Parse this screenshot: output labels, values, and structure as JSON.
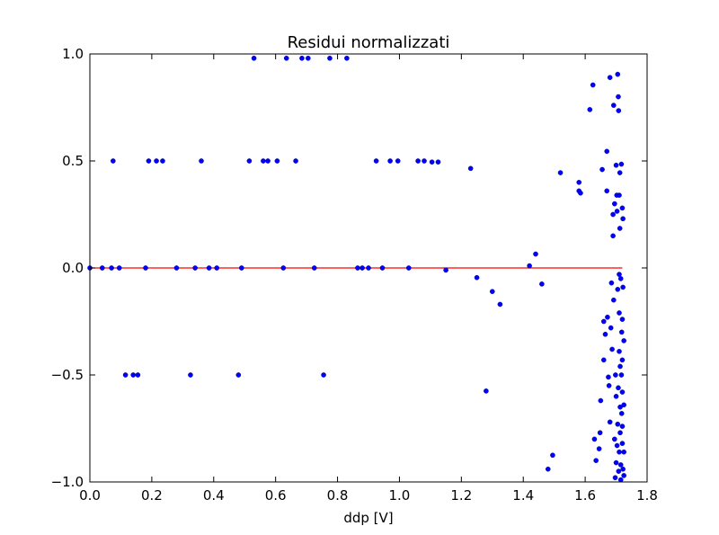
{
  "chart_data": {
    "type": "scatter",
    "title": "Residui normalizzati",
    "xlabel": "ddp [V]",
    "ylabel": "",
    "xlim": [
      0.0,
      1.8
    ],
    "ylim": [
      -1.0,
      1.0
    ],
    "xticks": [
      "0.0",
      "0.2",
      "0.4",
      "0.6",
      "0.8",
      "1.0",
      "1.2",
      "1.4",
      "1.6",
      "1.8"
    ],
    "yticks": [
      "−1.0",
      "−0.5",
      "0.0",
      "0.5",
      "1.0"
    ],
    "grid": false,
    "point_color": "#0000ff",
    "reference_line": {
      "y": 0.0,
      "x_range": [
        0.0,
        1.72
      ],
      "color": "#ff0000"
    },
    "series": [
      {
        "points": [
          [
            0.0,
            0.0
          ],
          [
            0.04,
            0.0
          ],
          [
            0.07,
            0.0
          ],
          [
            0.095,
            0.0
          ],
          [
            0.18,
            0.0
          ],
          [
            0.28,
            0.0
          ],
          [
            0.34,
            0.0
          ],
          [
            0.385,
            0.0
          ],
          [
            0.41,
            0.0
          ],
          [
            0.49,
            0.0
          ],
          [
            0.625,
            0.0
          ],
          [
            0.725,
            0.0
          ],
          [
            0.865,
            0.0
          ],
          [
            0.88,
            0.0
          ],
          [
            0.9,
            0.0
          ],
          [
            0.945,
            0.0
          ],
          [
            1.03,
            0.0
          ],
          [
            1.15,
            -0.01
          ],
          [
            0.075,
            0.5
          ],
          [
            0.19,
            0.5
          ],
          [
            0.215,
            0.5
          ],
          [
            0.235,
            0.5
          ],
          [
            0.36,
            0.5
          ],
          [
            0.515,
            0.5
          ],
          [
            0.56,
            0.5
          ],
          [
            0.575,
            0.5
          ],
          [
            0.605,
            0.5
          ],
          [
            0.665,
            0.5
          ],
          [
            0.925,
            0.5
          ],
          [
            0.97,
            0.5
          ],
          [
            0.995,
            0.5
          ],
          [
            1.06,
            0.5
          ],
          [
            1.08,
            0.5
          ],
          [
            1.105,
            0.495
          ],
          [
            1.125,
            0.495
          ],
          [
            1.23,
            0.465
          ],
          [
            0.53,
            0.98
          ],
          [
            0.635,
            0.98
          ],
          [
            0.685,
            0.98
          ],
          [
            0.705,
            0.98
          ],
          [
            0.775,
            0.98
          ],
          [
            0.83,
            0.98
          ],
          [
            0.115,
            -0.5
          ],
          [
            0.14,
            -0.5
          ],
          [
            0.155,
            -0.5
          ],
          [
            0.325,
            -0.5
          ],
          [
            0.48,
            -0.5
          ],
          [
            0.755,
            -0.5
          ],
          [
            1.25,
            -0.045
          ],
          [
            1.28,
            -0.575
          ],
          [
            1.3,
            -0.11
          ],
          [
            1.325,
            -0.17
          ],
          [
            1.42,
            0.01
          ],
          [
            1.44,
            0.065
          ],
          [
            1.46,
            -0.075
          ],
          [
            1.48,
            -0.94
          ],
          [
            1.495,
            -0.875
          ],
          [
            1.52,
            0.445
          ],
          [
            1.58,
            0.4
          ],
          [
            1.58,
            0.36
          ],
          [
            1.585,
            0.35
          ],
          [
            1.615,
            0.74
          ],
          [
            1.625,
            0.855
          ],
          [
            1.63,
            -0.8
          ],
          [
            1.635,
            -0.9
          ],
          [
            1.645,
            -0.845
          ],
          [
            1.648,
            -0.77
          ],
          [
            1.65,
            -0.62
          ],
          [
            1.655,
            0.46
          ],
          [
            1.66,
            -0.43
          ],
          [
            1.66,
            -0.25
          ],
          [
            1.665,
            -0.31
          ],
          [
            1.67,
            0.36
          ],
          [
            1.67,
            0.545
          ],
          [
            1.672,
            -0.23
          ],
          [
            1.675,
            -0.51
          ],
          [
            1.677,
            -0.55
          ],
          [
            1.68,
            0.89
          ],
          [
            1.68,
            -0.72
          ],
          [
            1.683,
            -0.28
          ],
          [
            1.685,
            -0.07
          ],
          [
            1.687,
            -0.38
          ],
          [
            1.69,
            0.25
          ],
          [
            1.69,
            0.15
          ],
          [
            1.692,
            0.76
          ],
          [
            1.692,
            -0.15
          ],
          [
            1.695,
            0.3
          ],
          [
            1.695,
            -0.8
          ],
          [
            1.697,
            -0.98
          ],
          [
            1.698,
            -0.5
          ],
          [
            1.7,
            0.48
          ],
          [
            1.7,
            -0.6
          ],
          [
            1.7,
            -0.91
          ],
          [
            1.702,
            0.34
          ],
          [
            1.703,
            0.265
          ],
          [
            1.703,
            -0.83
          ],
          [
            1.705,
            0.905
          ],
          [
            1.705,
            -0.1
          ],
          [
            1.705,
            -0.73
          ],
          [
            1.707,
            0.8
          ],
          [
            1.707,
            -0.56
          ],
          [
            1.708,
            0.735
          ],
          [
            1.708,
            -0.95
          ],
          [
            1.71,
            0.34
          ],
          [
            1.71,
            -0.03
          ],
          [
            1.71,
            -0.21
          ],
          [
            1.71,
            -0.39
          ],
          [
            1.71,
            -0.86
          ],
          [
            1.712,
            0.445
          ],
          [
            1.712,
            0.185
          ],
          [
            1.713,
            -0.46
          ],
          [
            1.713,
            -0.65
          ],
          [
            1.713,
            -0.77
          ],
          [
            1.715,
            -0.05
          ],
          [
            1.715,
            -0.92
          ],
          [
            1.715,
            -0.99
          ],
          [
            1.717,
            0.485
          ],
          [
            1.717,
            -0.5
          ],
          [
            1.718,
            -0.3
          ],
          [
            1.718,
            -0.68
          ],
          [
            1.72,
            0.28
          ],
          [
            1.72,
            -0.24
          ],
          [
            1.72,
            -0.43
          ],
          [
            1.72,
            -0.58
          ],
          [
            1.72,
            -0.74
          ],
          [
            1.72,
            -0.82
          ],
          [
            1.722,
            0.23
          ],
          [
            1.722,
            -0.09
          ],
          [
            1.722,
            -0.94
          ],
          [
            1.725,
            -0.34
          ],
          [
            1.725,
            -0.64
          ],
          [
            1.725,
            -0.86
          ],
          [
            1.725,
            -0.97
          ]
        ]
      }
    ]
  }
}
